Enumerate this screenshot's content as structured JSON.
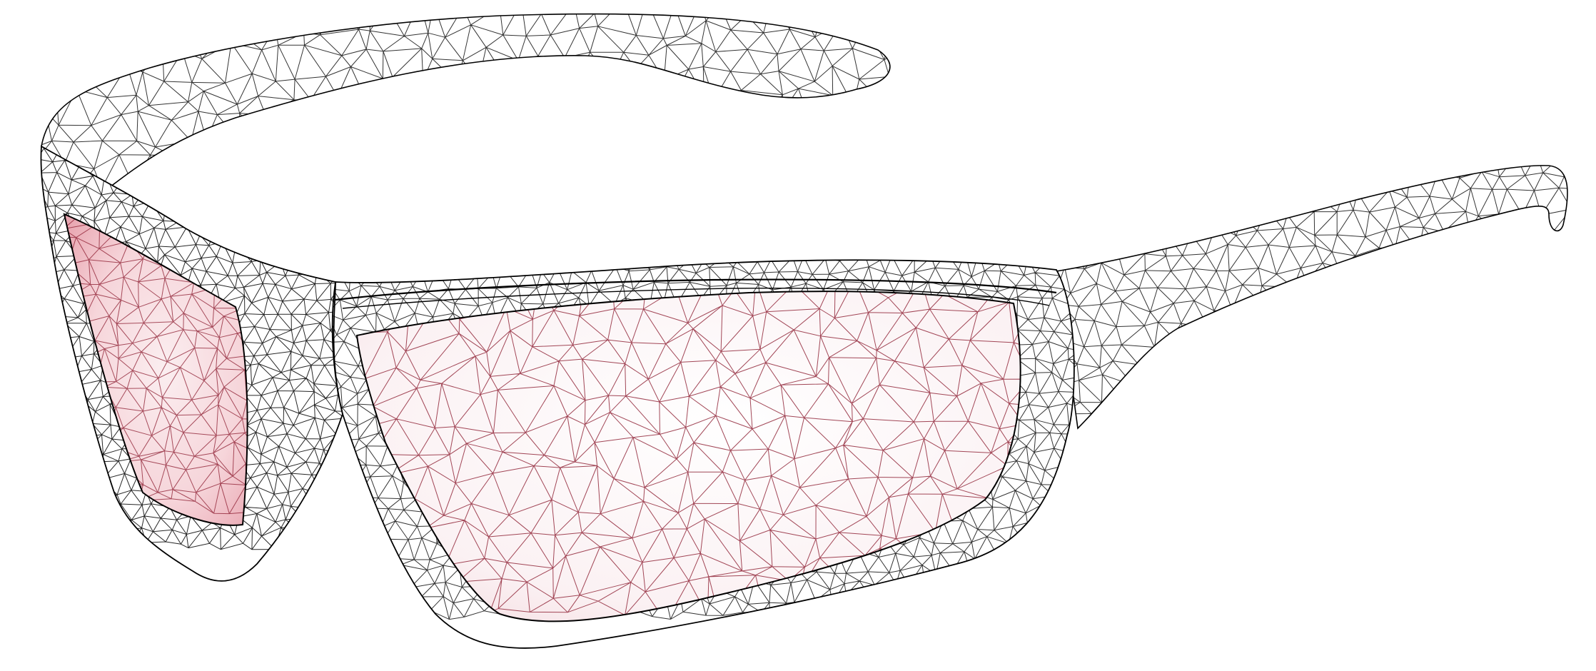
{
  "scene": {
    "subject": "sunglasses-wireframe",
    "style": "triangulated-wireframe",
    "background_color": "#ffffff",
    "frame_line_color": "#000000",
    "lens_line_color": "#8b1a2e",
    "lens_tint_color": "#f2c9cf"
  }
}
